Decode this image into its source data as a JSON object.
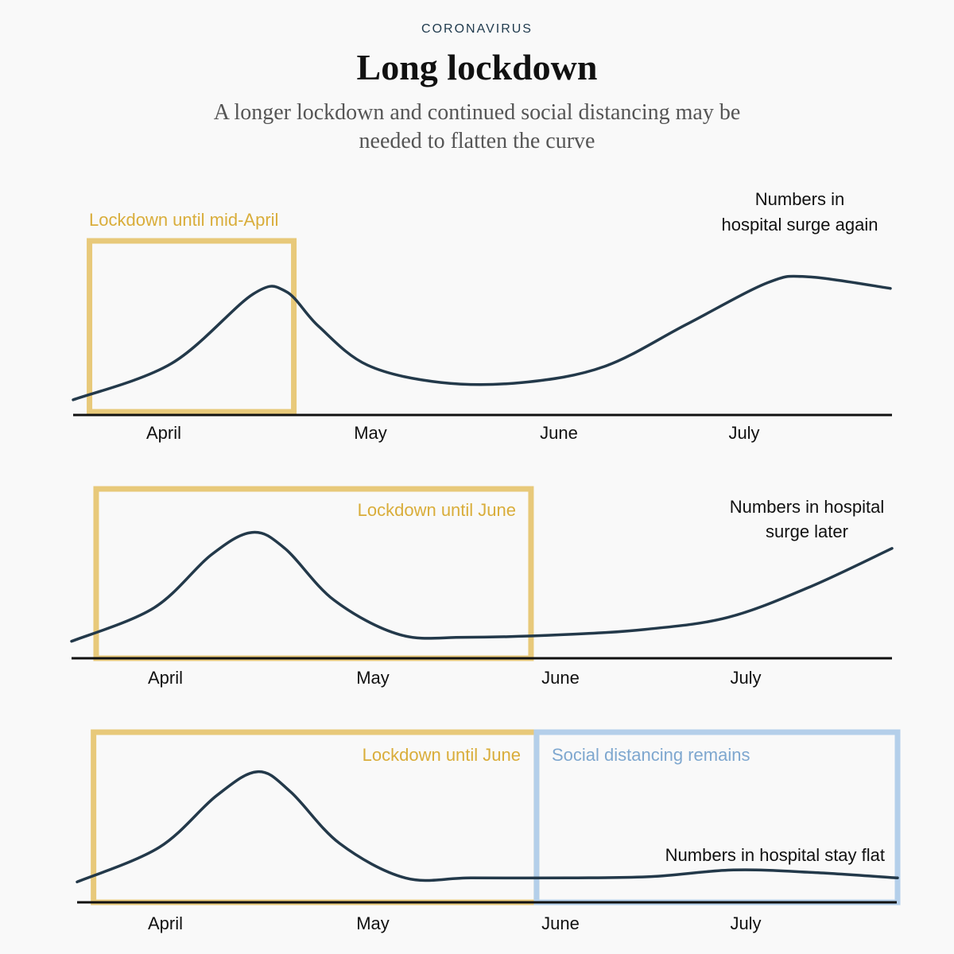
{
  "header": {
    "kicker": "CORONAVIRUS",
    "title": "Long lockdown",
    "subtitle": "A longer lockdown and continued social distancing may be needed to flatten the curve"
  },
  "colors": {
    "background": "#f9f9f9",
    "curve": "#23394a",
    "axis": "#111111",
    "lockdown": "#e8c97a",
    "lockdown_text": "#d9ad3a",
    "distancing": "#b4cfea",
    "distancing_text": "#7ea7cf"
  },
  "chart_data": [
    {
      "type": "line",
      "title": "",
      "months": [
        "April",
        "May",
        "June",
        "July"
      ],
      "curve": {
        "x": [
          0.0,
          0.12,
          0.22,
          0.26,
          0.3,
          0.36,
          0.45,
          0.55,
          0.65,
          0.75,
          0.85,
          0.9,
          1.0
        ],
        "y": [
          0.05,
          0.3,
          0.78,
          0.8,
          0.56,
          0.29,
          0.17,
          0.17,
          0.28,
          0.57,
          0.86,
          0.9,
          0.82
        ]
      },
      "boxes": [
        {
          "label": "Lockdown until mid-April",
          "kind": "lockdown",
          "x_start": 0.02,
          "x_end": 0.27
        }
      ],
      "annotation": [
        "Numbers in",
        "hospital surge again"
      ]
    },
    {
      "type": "line",
      "title": "",
      "months": [
        "April",
        "May",
        "June",
        "July"
      ],
      "curve": {
        "x": [
          0.0,
          0.1,
          0.17,
          0.22,
          0.26,
          0.32,
          0.4,
          0.48,
          0.6,
          0.7,
          0.8,
          0.9,
          1.0
        ],
        "y": [
          0.05,
          0.3,
          0.7,
          0.87,
          0.75,
          0.36,
          0.1,
          0.08,
          0.1,
          0.14,
          0.23,
          0.46,
          0.75
        ]
      },
      "boxes": [
        {
          "label": "Lockdown until June",
          "kind": "lockdown",
          "x_start": 0.03,
          "x_end": 0.56
        }
      ],
      "annotation": [
        "Numbers in hospital",
        "surge later"
      ]
    },
    {
      "type": "line",
      "title": "",
      "months": [
        "April",
        "May",
        "June",
        "July"
      ],
      "curve": {
        "x": [
          0.0,
          0.1,
          0.17,
          0.22,
          0.26,
          0.32,
          0.4,
          0.48,
          0.6,
          0.7,
          0.8,
          0.9,
          1.0
        ],
        "y": [
          0.07,
          0.33,
          0.72,
          0.9,
          0.75,
          0.36,
          0.1,
          0.1,
          0.1,
          0.11,
          0.16,
          0.14,
          0.1
        ]
      },
      "boxes": [
        {
          "label": "Lockdown until June",
          "kind": "lockdown",
          "x_start": 0.02,
          "x_end": 0.56
        },
        {
          "label": "Social distancing remains",
          "kind": "distancing",
          "x_start": 0.56,
          "x_end": 1.0
        }
      ],
      "annotation": [
        "Numbers in hospital stay flat"
      ]
    }
  ]
}
